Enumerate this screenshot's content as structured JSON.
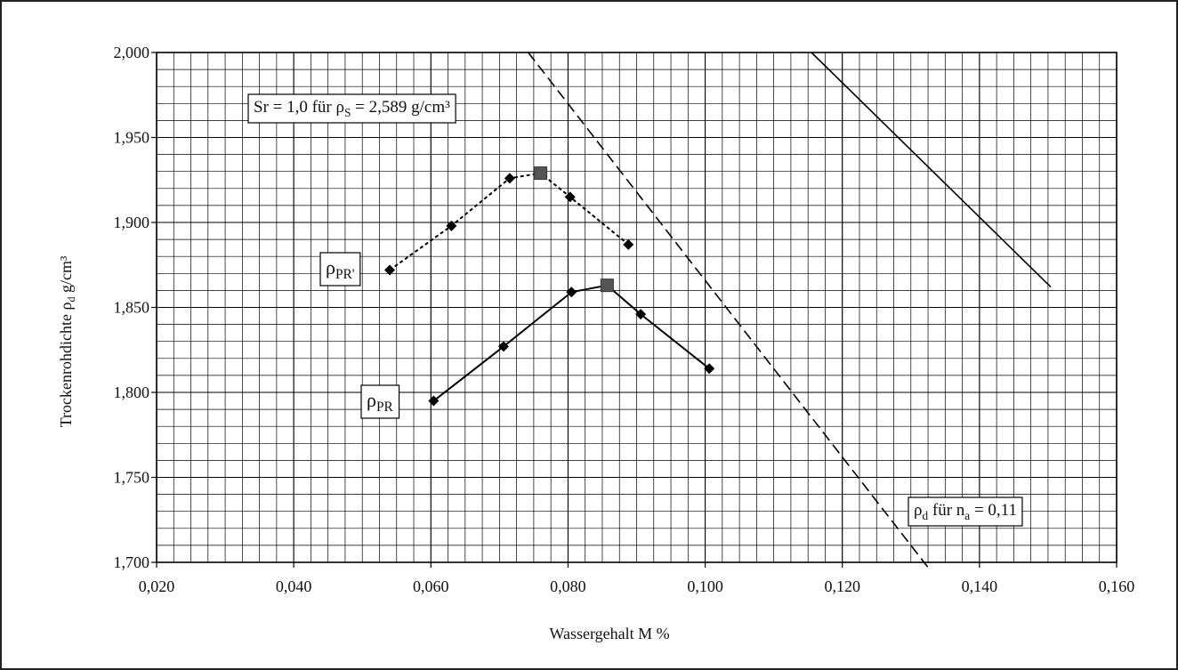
{
  "chart_data": {
    "type": "line",
    "xlabel": "Wassergehalt M %",
    "ylabel": "Trockenrohdichte ρ",
    "ylabel_sub": "d",
    "ylabel_tail": " g/cm³",
    "xlim": [
      0.02,
      0.16
    ],
    "ylim": [
      1.7,
      2.0
    ],
    "x_ticks": [
      "0,020",
      "0,040",
      "0,060",
      "0,080",
      "0,100",
      "0,120",
      "0,140",
      "0,160"
    ],
    "y_ticks": [
      "1,700",
      "1,750",
      "1,800",
      "1,850",
      "1,900",
      "1,950",
      "2,000"
    ],
    "x_tick_values": [
      0.02,
      0.04,
      0.06,
      0.08,
      0.1,
      0.12,
      0.14,
      0.16
    ],
    "y_tick_values": [
      1.7,
      1.75,
      1.8,
      1.85,
      1.9,
      1.95,
      2.0
    ],
    "grid": true,
    "series": [
      {
        "label_main": "ρ",
        "label_sub": "PR'",
        "style": "dotted",
        "x": [
          0.054,
          0.063,
          0.0715,
          0.0803,
          0.0888
        ],
        "y": [
          1.872,
          1.898,
          1.926,
          1.915,
          1.887
        ],
        "peak": {
          "x": 0.076,
          "y": 1.929
        }
      },
      {
        "label_main": "ρ",
        "label_sub": "PR",
        "style": "solid",
        "x": [
          0.0604,
          0.0706,
          0.0805,
          0.0906,
          0.1006
        ],
        "y": [
          1.795,
          1.827,
          1.859,
          1.846,
          1.814
        ],
        "peak": {
          "x": 0.0857,
          "y": 1.863
        }
      }
    ],
    "reference_lines": [
      {
        "style": "dashed",
        "x": [
          0.0742,
          0.1325
        ],
        "y": [
          2.0,
          1.697
        ],
        "label_parts": [
          "Sr = 1,0 für ρ",
          "S",
          " = 2,589 g/cm³"
        ]
      },
      {
        "style": "solid",
        "x": [
          0.1155,
          0.1504
        ],
        "y": [
          2.0,
          1.862
        ],
        "label_parts": [
          "ρ",
          "d",
          " für n",
          "a",
          " = 0,11"
        ]
      }
    ],
    "colors": {
      "series": "#000000",
      "peak_marker": "#555555",
      "grid": "#000000"
    }
  }
}
